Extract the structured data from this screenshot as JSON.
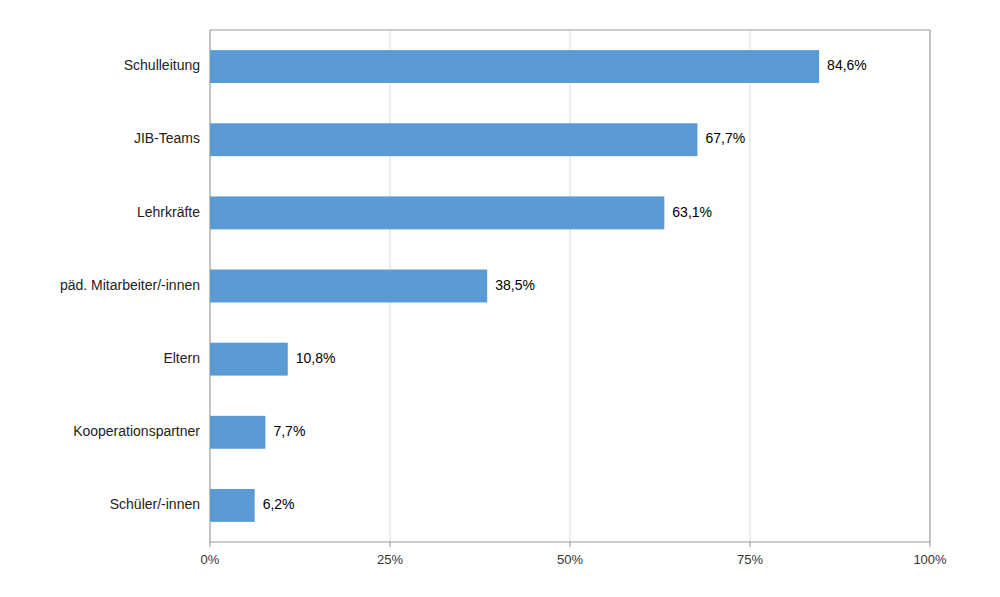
{
  "chart_data": {
    "type": "bar",
    "orientation": "horizontal",
    "categories": [
      "Schüler/-innen",
      "Kooperationspartner",
      "Eltern",
      "päd. Mitarbeiter/-innen",
      "Lehrkräfte",
      "JIB-Teams",
      "Schulleitung"
    ],
    "values": [
      6.2,
      7.7,
      10.8,
      38.5,
      63.1,
      67.7,
      84.6
    ],
    "value_labels": [
      "6,2%",
      "7,7%",
      "10,8%",
      "38,5%",
      "63,1%",
      "67,7%",
      "84,6%"
    ],
    "data_labels": true,
    "color": "#5B9BD5",
    "xlim": [
      0,
      100
    ],
    "xticks": [
      {
        "value": 0,
        "label": "0%"
      },
      {
        "value": 25,
        "label": "25%"
      },
      {
        "value": 50,
        "label": "50%"
      },
      {
        "value": 75,
        "label": "75%"
      },
      {
        "value": 100,
        "label": "100%"
      }
    ],
    "grid": true
  }
}
